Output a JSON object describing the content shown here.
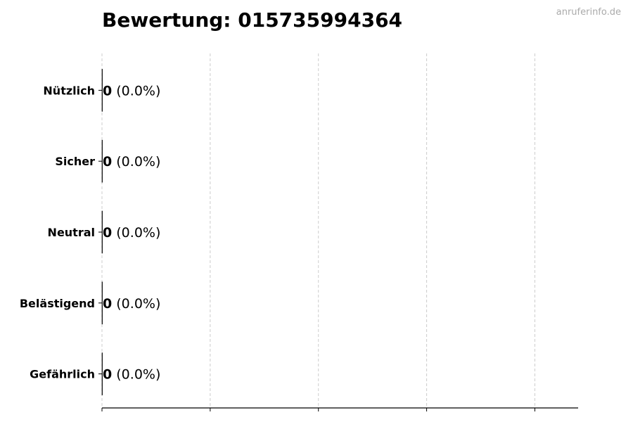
{
  "watermark": "anruferinfo.de",
  "chart_data": {
    "type": "bar",
    "orientation": "horizontal",
    "title": "Bewertung: 015735994364",
    "xlabel": "",
    "ylabel": "",
    "categories": [
      "Nützlich",
      "Sicher",
      "Neutral",
      "Belästigend",
      "Gefährlich"
    ],
    "values": [
      0,
      0,
      0,
      0,
      0
    ],
    "labels": [
      {
        "count": "0",
        "percent": "(0.0%)"
      },
      {
        "count": "0",
        "percent": "(0.0%)"
      },
      {
        "count": "0",
        "percent": "(0.0%)"
      },
      {
        "count": "0",
        "percent": "(0.0%)"
      },
      {
        "count": "0",
        "percent": "(0.0%)"
      }
    ],
    "xlim": [
      0,
      4.4
    ],
    "xticks": [
      0,
      1,
      2,
      3,
      4
    ],
    "xtick_labels_shown": false,
    "grid": "x-dashed",
    "colors": {
      "gridline": "#cccccc",
      "axis": "#000000",
      "bar_edge": "#000000"
    }
  }
}
